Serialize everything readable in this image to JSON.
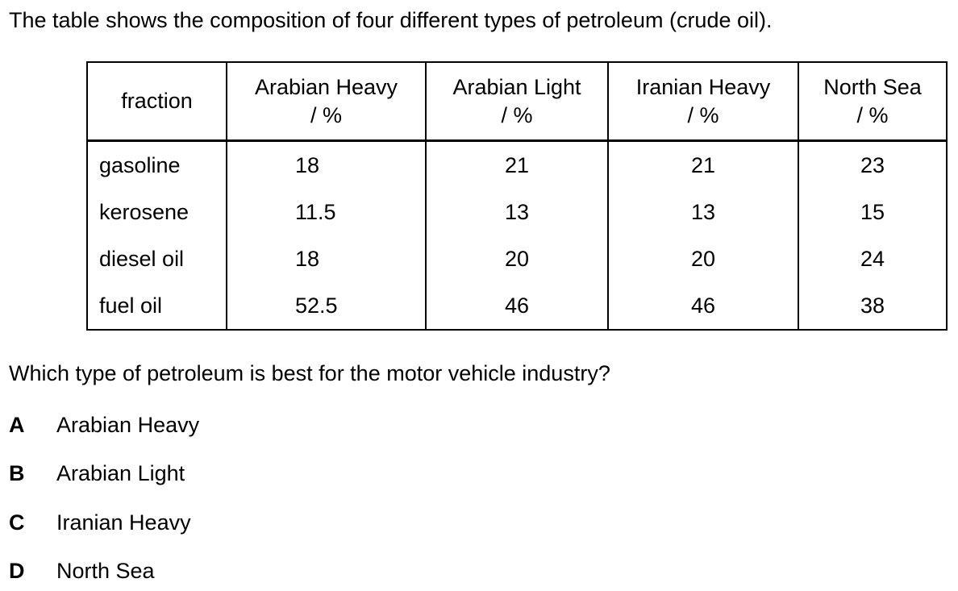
{
  "intro": "The table shows the composition of four different types of petroleum (crude oil).",
  "table": {
    "headers": [
      {
        "name": "fraction",
        "unit": ""
      },
      {
        "name": "Arabian Heavy",
        "unit": "/ %"
      },
      {
        "name": "Arabian Light",
        "unit": "/ %"
      },
      {
        "name": "Iranian Heavy",
        "unit": "/ %"
      },
      {
        "name": "North Sea",
        "unit": "/ %"
      }
    ],
    "rows": [
      [
        "gasoline",
        "18",
        "21",
        "21",
        "23"
      ],
      [
        "kerosene",
        "11.5",
        "13",
        "13",
        "15"
      ],
      [
        "diesel oil",
        "18",
        "20",
        "20",
        "24"
      ],
      [
        "fuel oil",
        "52.5",
        "46",
        "46",
        "38"
      ]
    ]
  },
  "question": "Which type of petroleum is best for the motor vehicle industry?",
  "options": [
    {
      "letter": "A",
      "text": "Arabian Heavy"
    },
    {
      "letter": "B",
      "text": "Arabian Light"
    },
    {
      "letter": "C",
      "text": "Iranian Heavy"
    },
    {
      "letter": "D",
      "text": "North Sea"
    }
  ]
}
